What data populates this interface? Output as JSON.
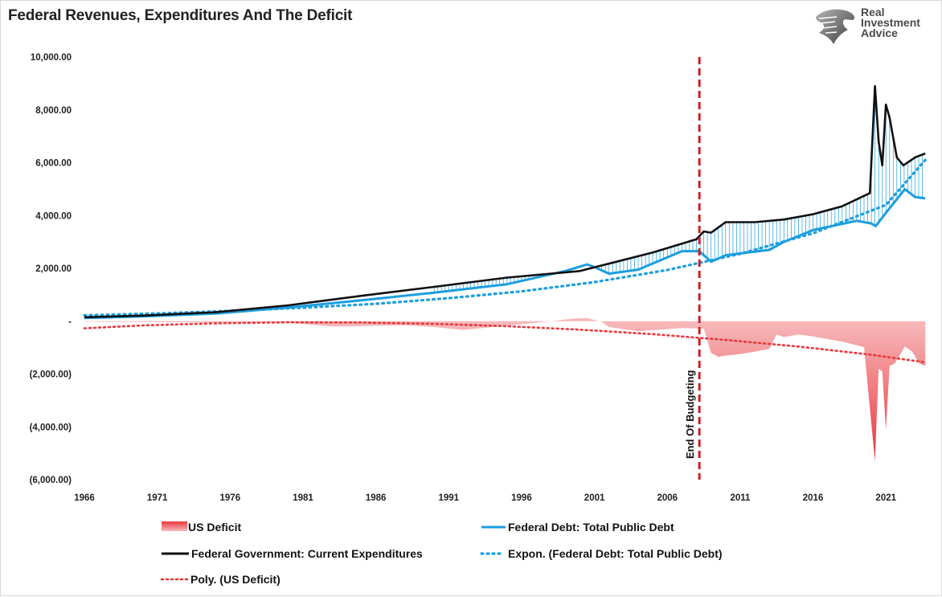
{
  "title": "Federal Revenues, Expenditures And The Deficit",
  "logo": {
    "lines": [
      "Real",
      "Investment",
      "Advice"
    ],
    "icon": "eagle-head-icon"
  },
  "colors": {
    "deficit_fill": "#e8383d",
    "deficit_fill_light": "#f7b9bb",
    "debt": "#1b9ee0",
    "expenditures": "#111111",
    "expon_trend": "#1b9ee0",
    "poly_trend": "#e8383d",
    "end_budget_line": "#cc1f26"
  },
  "chart_data": {
    "type": "line",
    "title": "Federal Revenues, Expenditures And The Deficit",
    "xlabel": "",
    "ylabel": "",
    "xlim": [
      1966,
      2023.8
    ],
    "ylim": [
      -6000,
      10000
    ],
    "x_ticks": [
      "1966",
      "1971",
      "1976",
      "1981",
      "1986",
      "1991",
      "1996",
      "2001",
      "2006",
      "2011",
      "2016",
      "2021"
    ],
    "y_ticks": [
      "10,000.00",
      "8,000.00",
      "6,000.00",
      "4,000.00",
      "2,000.00",
      "-",
      "(2,000.00)",
      "(4,000.00)",
      "(6,000.00)"
    ],
    "grid": false,
    "legend_position": "bottom",
    "annotation": {
      "label": "End Of Budgeting",
      "x": 2008.2
    },
    "series": [
      {
        "name": "Federal Government: Current Expenditures",
        "type": "line",
        "x": [
          1966,
          1970,
          1975,
          1980,
          1985,
          1990,
          1995,
          2000,
          2005,
          2008,
          2008.5,
          2009,
          2010,
          2012,
          2014,
          2016,
          2018,
          2019.9,
          2020.25,
          2020.5,
          2020.75,
          2021.0,
          2021.25,
          2021.75,
          2022.2,
          2023,
          2023.7
        ],
        "values": [
          150,
          210,
          340,
          600,
          960,
          1300,
          1650,
          1900,
          2600,
          3100,
          3400,
          3350,
          3750,
          3750,
          3850,
          4050,
          4350,
          4850,
          8900,
          6800,
          5900,
          8200,
          7700,
          6200,
          5900,
          6200,
          6350
        ]
      },
      {
        "name": "Federal Debt: Total Public Debt",
        "type": "line",
        "x": [
          1966,
          1970,
          1975,
          1980,
          1985,
          1990,
          1995,
          1999,
          2000.5,
          2001,
          2002,
          2004,
          2007,
          2008.2,
          2009,
          2010,
          2013,
          2014,
          2016,
          2019,
          2020.0,
          2020.3,
          2021,
          2022.3,
          2023,
          2023.7
        ],
        "values": [
          120,
          180,
          290,
          520,
          790,
          1080,
          1400,
          1900,
          2150,
          2050,
          1800,
          1950,
          2650,
          2650,
          2250,
          2500,
          2700,
          3000,
          3450,
          3800,
          3700,
          3600,
          4100,
          5000,
          4700,
          4650
        ]
      },
      {
        "name": "US Deficit",
        "type": "area",
        "x": [
          1966,
          1970,
          1975,
          1978,
          1980,
          1983,
          1985,
          1988,
          1990,
          1992,
          1995,
          1998,
          1999.5,
          2000.5,
          2001.5,
          2002,
          2004,
          2007,
          2008.5,
          2009,
          2009.5,
          2010,
          2011,
          2012,
          2013,
          2013.5,
          2014,
          2015,
          2016,
          2018,
          2019.5,
          2020.25,
          2020.5,
          2020.75,
          2021.0,
          2021.25,
          2021.6,
          2022.0,
          2022.3,
          2022.8,
          2023.3,
          2023.7
        ],
        "values": [
          -20,
          -30,
          -60,
          -50,
          -60,
          -200,
          -180,
          -150,
          -220,
          -330,
          -170,
          0,
          100,
          120,
          -30,
          -220,
          -380,
          -260,
          -280,
          -1200,
          -1350,
          -1300,
          -1250,
          -1150,
          -1050,
          -500,
          -600,
          -500,
          -580,
          -770,
          -980,
          -5300,
          -1800,
          -1900,
          -4100,
          -1700,
          -1600,
          -1250,
          -950,
          -1150,
          -1600,
          -1700
        ]
      },
      {
        "name": "Expon. (Federal Debt: Total Public Debt)",
        "type": "trend",
        "x": [
          1966,
          1971,
          1976,
          1981,
          1986,
          1991,
          1996,
          2001,
          2006,
          2011,
          2016,
          2021,
          2023.7
        ],
        "values": [
          225,
          295,
          390,
          510,
          660,
          870,
          1130,
          1480,
          1940,
          2550,
          3330,
          4400,
          6100
        ]
      },
      {
        "name": "Poly. (US Deficit)",
        "type": "trend",
        "x": [
          1966,
          1970,
          1975,
          1980,
          1985,
          1990,
          1995,
          2000,
          2005,
          2010,
          2015,
          2020,
          2023.7
        ],
        "values": [
          -270,
          -160,
          -80,
          -40,
          -50,
          -100,
          -190,
          -320,
          -490,
          -710,
          -960,
          -1270,
          -1560
        ]
      }
    ]
  },
  "legend": [
    {
      "label": "US Deficit",
      "key": "area"
    },
    {
      "label": "Federal Debt: Total Public Debt",
      "key": "debt"
    },
    {
      "label": "Federal Government: Current Expenditures",
      "key": "expenditures"
    },
    {
      "label": "Expon. (Federal Debt: Total Public Debt)",
      "key": "expon"
    },
    {
      "label": "Poly. (US Deficit)",
      "key": "poly"
    }
  ]
}
